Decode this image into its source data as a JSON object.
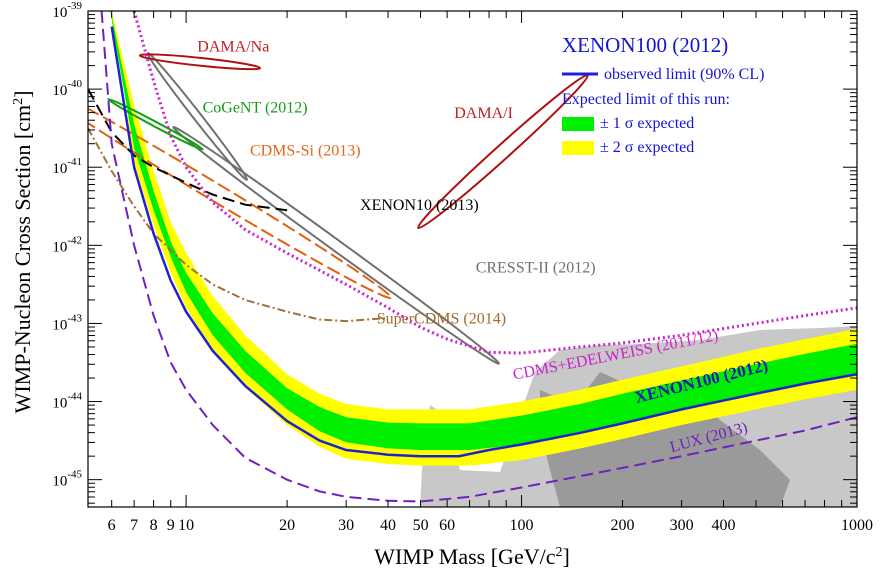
{
  "chart_data": {
    "type": "line",
    "xlabel": "WIMP Mass [GeV/c²]",
    "xlabel_base": "WIMP Mass [GeV/c",
    "xlabel_sup": "2",
    "xlabel_end": "]",
    "ylabel_base": "WIMP-Nucleon Cross Section [cm",
    "ylabel_sup": "2",
    "ylabel_end": "]",
    "x_scale": "log",
    "y_scale": "log",
    "xlim": [
      5.1,
      1000
    ],
    "ylim_exp": [
      -45.35,
      -39
    ],
    "x_ticks": [
      {
        "v": 6,
        "label": "6"
      },
      {
        "v": 7,
        "label": "7"
      },
      {
        "v": 8,
        "label": "8"
      },
      {
        "v": 9,
        "label": "9"
      },
      {
        "v": 10,
        "label": "10"
      },
      {
        "v": 20,
        "label": "20"
      },
      {
        "v": 30,
        "label": "30"
      },
      {
        "v": 40,
        "label": "40"
      },
      {
        "v": 50,
        "label": "50"
      },
      {
        "v": 60,
        "label": "60"
      },
      {
        "v": 100,
        "label": "100"
      },
      {
        "v": 200,
        "label": "200"
      },
      {
        "v": 300,
        "label": "300"
      },
      {
        "v": 400,
        "label": "400"
      },
      {
        "v": 1000,
        "label": "1000"
      }
    ],
    "y_ticks": [
      {
        "exp": -39,
        "base": "10",
        "sup": "-39"
      },
      {
        "exp": -40,
        "base": "10",
        "sup": "-40"
      },
      {
        "exp": -41,
        "base": "10",
        "sup": "-41"
      },
      {
        "exp": -42,
        "base": "10",
        "sup": "-42"
      },
      {
        "exp": -43,
        "base": "10",
        "sup": "-43"
      },
      {
        "exp": -44,
        "base": "10",
        "sup": "-44"
      },
      {
        "exp": -45,
        "base": "10",
        "sup": "-45"
      }
    ],
    "legend": {
      "position": "top-right",
      "title": "XENON100 (2012)",
      "observed": "observed limit (90% CL)",
      "expected_header": "Expected limit of this run:",
      "sigma1": "± 1 σ expected",
      "sigma2": "± 2 σ expected",
      "colors": {
        "title": "#1414d2",
        "observed": "#1e1edc",
        "sigma1": "#00ee00",
        "sigma2": "#ffff00"
      }
    },
    "series": {
      "xenon100_observed": {
        "name": "XENON100 (2012)",
        "color": "#2222cc",
        "points": [
          [
            6,
            -39.2
          ],
          [
            7,
            -41.0
          ],
          [
            8,
            -41.85
          ],
          [
            9,
            -42.45
          ],
          [
            10,
            -42.85
          ],
          [
            12,
            -43.35
          ],
          [
            15,
            -43.8
          ],
          [
            20,
            -44.25
          ],
          [
            25,
            -44.5
          ],
          [
            30,
            -44.62
          ],
          [
            40,
            -44.68
          ],
          [
            50,
            -44.7
          ],
          [
            65,
            -44.7
          ],
          [
            80,
            -44.62
          ],
          [
            100,
            -44.55
          ],
          [
            150,
            -44.4
          ],
          [
            200,
            -44.28
          ],
          [
            300,
            -44.1
          ],
          [
            500,
            -43.9
          ],
          [
            700,
            -43.77
          ],
          [
            1000,
            -43.65
          ]
        ]
      },
      "band_2sigma": {
        "color": "#ffff00",
        "upper": [
          [
            5.7,
            -38.6
          ],
          [
            7,
            -40.2
          ],
          [
            8,
            -41.05
          ],
          [
            9,
            -41.7
          ],
          [
            10,
            -42.1
          ],
          [
            12,
            -42.65
          ],
          [
            15,
            -43.15
          ],
          [
            20,
            -43.65
          ],
          [
            25,
            -43.9
          ],
          [
            30,
            -44.03
          ],
          [
            40,
            -44.1
          ],
          [
            50,
            -44.1
          ],
          [
            70,
            -44.1
          ],
          [
            100,
            -44.0
          ],
          [
            150,
            -43.85
          ],
          [
            200,
            -43.72
          ],
          [
            300,
            -43.55
          ],
          [
            500,
            -43.33
          ],
          [
            700,
            -43.2
          ],
          [
            1000,
            -43.07
          ]
        ],
        "lower": [
          [
            6.3,
            -39.5
          ],
          [
            7,
            -40.95
          ],
          [
            8,
            -41.75
          ],
          [
            9,
            -42.35
          ],
          [
            10,
            -42.8
          ],
          [
            12,
            -43.35
          ],
          [
            15,
            -43.82
          ],
          [
            20,
            -44.3
          ],
          [
            25,
            -44.58
          ],
          [
            30,
            -44.73
          ],
          [
            40,
            -44.8
          ],
          [
            50,
            -44.82
          ],
          [
            70,
            -44.82
          ],
          [
            100,
            -44.75
          ],
          [
            150,
            -44.6
          ],
          [
            200,
            -44.48
          ],
          [
            300,
            -44.3
          ],
          [
            500,
            -44.1
          ],
          [
            700,
            -43.97
          ],
          [
            1000,
            -43.85
          ]
        ]
      },
      "band_1sigma": {
        "color": "#00ee00",
        "upper": [
          [
            5.9,
            -38.9
          ],
          [
            7,
            -40.45
          ],
          [
            8,
            -41.3
          ],
          [
            9,
            -41.95
          ],
          [
            10,
            -42.35
          ],
          [
            12,
            -42.87
          ],
          [
            15,
            -43.35
          ],
          [
            20,
            -43.83
          ],
          [
            25,
            -44.07
          ],
          [
            30,
            -44.2
          ],
          [
            40,
            -44.27
          ],
          [
            50,
            -44.28
          ],
          [
            70,
            -44.28
          ],
          [
            100,
            -44.18
          ],
          [
            150,
            -44.03
          ],
          [
            200,
            -43.9
          ],
          [
            300,
            -43.73
          ],
          [
            500,
            -43.52
          ],
          [
            700,
            -43.39
          ],
          [
            1000,
            -43.26
          ]
        ],
        "lower": [
          [
            6.1,
            -39.3
          ],
          [
            7,
            -40.75
          ],
          [
            8,
            -41.55
          ],
          [
            9,
            -42.15
          ],
          [
            10,
            -42.6
          ],
          [
            12,
            -43.15
          ],
          [
            15,
            -43.63
          ],
          [
            20,
            -44.1
          ],
          [
            25,
            -44.38
          ],
          [
            30,
            -44.52
          ],
          [
            40,
            -44.6
          ],
          [
            50,
            -44.62
          ],
          [
            70,
            -44.62
          ],
          [
            100,
            -44.55
          ],
          [
            150,
            -44.4
          ],
          [
            200,
            -44.28
          ],
          [
            300,
            -44.1
          ],
          [
            500,
            -43.9
          ],
          [
            700,
            -43.77
          ],
          [
            1000,
            -43.65
          ]
        ]
      },
      "lux": {
        "name": "LUX (2013)",
        "color": "#7020c0",
        "dash": "12,6",
        "points": [
          [
            5.6,
            -39.0
          ],
          [
            6,
            -40.7
          ],
          [
            7,
            -42.0
          ],
          [
            8,
            -42.9
          ],
          [
            9,
            -43.5
          ],
          [
            10,
            -43.85
          ],
          [
            12,
            -44.3
          ],
          [
            15,
            -44.72
          ],
          [
            20,
            -45.0
          ],
          [
            25,
            -45.15
          ],
          [
            30,
            -45.22
          ],
          [
            40,
            -45.27
          ],
          [
            50,
            -45.28
          ],
          [
            70,
            -45.22
          ],
          [
            100,
            -45.1
          ],
          [
            200,
            -44.85
          ],
          [
            300,
            -44.7
          ],
          [
            500,
            -44.5
          ],
          [
            700,
            -44.37
          ],
          [
            1000,
            -44.2
          ]
        ]
      },
      "cdms_edelweiss": {
        "name": "CDMS+EDELWEISS (2011/12)",
        "color": "#cc22cc",
        "dash": "2,3",
        "points": [
          [
            7,
            -39.0
          ],
          [
            8,
            -39.9
          ],
          [
            9,
            -40.6
          ],
          [
            10,
            -41.0
          ],
          [
            12,
            -41.45
          ],
          [
            15,
            -41.8
          ],
          [
            20,
            -42.1
          ],
          [
            30,
            -42.5
          ],
          [
            40,
            -42.8
          ],
          [
            50,
            -43.05
          ],
          [
            60,
            -43.2
          ],
          [
            80,
            -43.37
          ],
          [
            100,
            -43.38
          ],
          [
            150,
            -43.3
          ],
          [
            200,
            -43.25
          ],
          [
            300,
            -43.15
          ],
          [
            500,
            -43.0
          ],
          [
            700,
            -42.9
          ],
          [
            1000,
            -42.8
          ]
        ]
      },
      "xenon10": {
        "name": "XENON10 (2013)",
        "color": "#000000",
        "dash": "12,6",
        "points": [
          [
            5.1,
            -40.0
          ],
          [
            6,
            -40.55
          ],
          [
            7,
            -40.85
          ],
          [
            8,
            -41.0
          ],
          [
            10,
            -41.2
          ],
          [
            12,
            -41.35
          ],
          [
            15,
            -41.48
          ],
          [
            20,
            -41.55
          ]
        ]
      },
      "supercdms": {
        "name": "SuperCDMS (2014)",
        "color": "#a0703a",
        "dash": "8,3,2,3",
        "points": [
          [
            5.1,
            -40.5
          ],
          [
            6,
            -41.05
          ],
          [
            7,
            -41.5
          ],
          [
            8,
            -41.85
          ],
          [
            10,
            -42.25
          ],
          [
            12,
            -42.5
          ],
          [
            15,
            -42.7
          ],
          [
            20,
            -42.85
          ],
          [
            25,
            -42.95
          ],
          [
            30,
            -42.97
          ],
          [
            40,
            -42.93
          ]
        ]
      },
      "damai_region": {
        "name": "DAMA/I",
        "color": "#b01010",
        "center": [
          88,
          -40.8
        ],
        "rx_dec": 0.34,
        "ry_dec": 0.09,
        "angle": -42
      },
      "damana_region": {
        "name": "DAMA/Na",
        "color": "#b01010",
        "center": [
          11,
          -39.65
        ],
        "rx_dec": 0.18,
        "ry_dec": 0.05,
        "angle": 6
      },
      "cogent_region": {
        "name": "CoGeNT (2012)",
        "color": "#10a010",
        "center": [
          8.1,
          -40.45
        ],
        "rx_dec": 0.16,
        "ry_dec": 0.03,
        "angle": 28
      },
      "cdms_si_region": {
        "name": "CDMS-Si (2013)",
        "color": "#e06010",
        "dash": "14,5",
        "center": [
          12,
          -41.3
        ],
        "rx_dec": 0.62,
        "ry_dec": 0.11,
        "angle": 31
      },
      "cresst_regions": {
        "name": "CRESST-II (2012)",
        "color": "#707070",
        "regions": [
          {
            "center": [
              10.8,
              -40.35
            ],
            "rx_dec": 0.24,
            "ry_dec": 0.05,
            "angle": 52
          },
          {
            "center": [
              28,
              -42.0
            ],
            "rx_dec": 0.6,
            "ry_dec": 0.07,
            "angle": 36
          }
        ]
      },
      "annotations": [
        {
          "key": "damana",
          "text": "DAMA/Na",
          "color": "#c02020",
          "at": [
            10.8,
            -39.52
          ],
          "size": 16
        },
        {
          "key": "cogent",
          "text": "CoGeNT (2012)",
          "color": "#1a9a1a",
          "at": [
            11.2,
            -40.3
          ],
          "size": 16
        },
        {
          "key": "damai",
          "text": "DAMA/I",
          "color": "#c02020",
          "at": [
            63,
            -40.37
          ],
          "size": 16
        },
        {
          "key": "cdmssi",
          "text": "CDMS-Si (2013)",
          "color": "#e06818",
          "at": [
            15.5,
            -40.85
          ],
          "size": 16
        },
        {
          "key": "xenon10",
          "text": "XENON10 (2013)",
          "color": "#000000",
          "at": [
            33,
            -41.55
          ],
          "size": 16
        },
        {
          "key": "cresst",
          "text": "CRESST-II (2012)",
          "color": "#707070",
          "at": [
            73,
            -42.35
          ],
          "size": 16
        },
        {
          "key": "supercdms",
          "text": "SuperCDMS (2014)",
          "color": "#a06a30",
          "at": [
            37,
            -43.0
          ],
          "size": 16
        },
        {
          "key": "cdmsedel",
          "text": "CDMS+EDELWEISS (2011/12)",
          "color": "#cc22cc",
          "at": [
            95,
            -43.72
          ],
          "size": 16,
          "angle": -11
        },
        {
          "key": "xenon100",
          "text": "XENON100 (2012)",
          "color": "#1a1ab0",
          "at": [
            220,
            -44.02
          ],
          "size": 17,
          "angle": -14,
          "bold": true
        },
        {
          "key": "lux",
          "text": "LUX (2013)",
          "color": "#7020c0",
          "at": [
            280,
            -44.65
          ],
          "size": 16,
          "angle": -15
        }
      ]
    }
  }
}
